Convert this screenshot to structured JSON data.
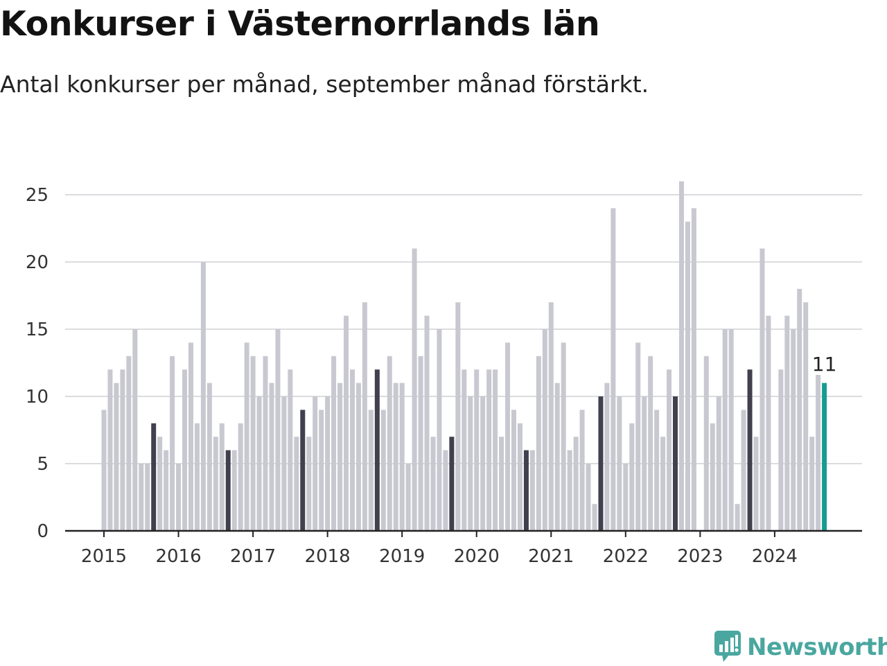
{
  "title": "Konkurser i Västernorrlands län",
  "subtitle": "Antal konkurser per månad, september månad förstärkt.",
  "brand": {
    "name": "Newsworthy",
    "logo_icon": "newsworthy-chart-bubble-icon"
  },
  "colors": {
    "bar": "#c8c8d0",
    "highlight_september": "#41404e",
    "latest": "#159c92",
    "grid": "#dcdce0",
    "axis": "#222222",
    "brand": "#4aa7a0"
  },
  "chart_data": {
    "type": "bar",
    "title": "Konkurser i Västernorrlands län",
    "subtitle": "Antal konkurser per månad, september månad förstärkt.",
    "xlabel": "",
    "ylabel": "",
    "ylim": [
      0,
      27.5
    ],
    "y_ticks": [
      0,
      5,
      10,
      15,
      20,
      25
    ],
    "x_tick_labels": [
      "2015",
      "2016",
      "2017",
      "2018",
      "2019",
      "2020",
      "2021",
      "2022",
      "2023",
      "2024"
    ],
    "grid": "horizontal",
    "first_month": "2015-01",
    "highlight_month": "september",
    "latest_label": "11",
    "values": [
      9,
      12,
      11,
      12,
      13,
      15,
      5,
      5,
      8,
      7,
      6,
      13,
      5,
      12,
      14,
      8,
      20,
      11,
      7,
      8,
      6,
      6,
      8,
      14,
      13,
      10,
      13,
      11,
      15,
      10,
      12,
      7,
      9,
      7,
      10,
      9,
      10,
      13,
      11,
      16,
      12,
      11,
      17,
      9,
      12,
      9,
      13,
      11,
      11,
      5,
      21,
      13,
      16,
      7,
      15,
      6,
      7,
      17,
      12,
      10,
      12,
      10,
      12,
      12,
      7,
      14,
      9,
      8,
      6,
      6,
      13,
      15,
      17,
      11,
      14,
      6,
      7,
      9,
      5,
      2,
      10,
      11,
      24,
      10,
      5,
      8,
      14,
      10,
      13,
      9,
      7,
      12,
      10,
      26,
      23,
      24,
      0,
      13,
      8,
      10,
      15,
      15,
      2,
      9,
      12,
      7,
      21,
      16,
      0,
      12,
      16,
      15,
      18,
      17,
      7,
      11.6,
      11
    ]
  }
}
